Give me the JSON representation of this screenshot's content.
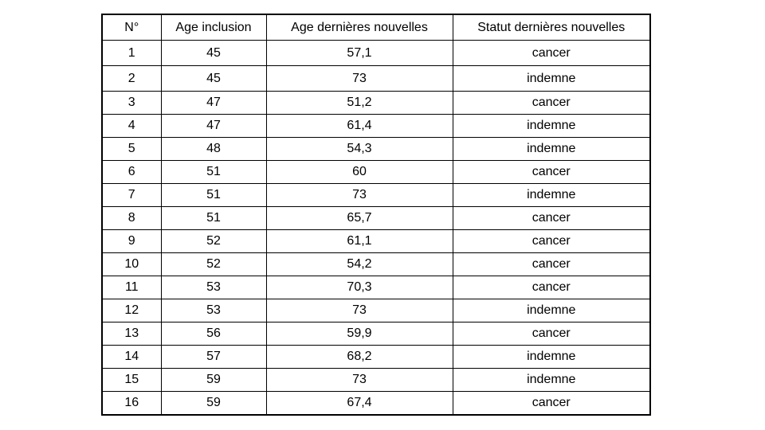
{
  "table": {
    "headers": [
      "N°",
      "Age inclusion",
      "Age dernières nouvelles",
      "Statut dernières nouvelles"
    ],
    "rows": [
      [
        "1",
        "45",
        "57,1",
        "cancer"
      ],
      [
        "2",
        "45",
        "73",
        "indemne"
      ],
      [
        "3",
        "47",
        "51,2",
        "cancer"
      ],
      [
        "4",
        "47",
        "61,4",
        "indemne"
      ],
      [
        "5",
        "48",
        "54,3",
        "indemne"
      ],
      [
        "6",
        "51",
        "60",
        "cancer"
      ],
      [
        "7",
        "51",
        "73",
        "indemne"
      ],
      [
        "8",
        "51",
        "65,7",
        "cancer"
      ],
      [
        "9",
        "52",
        "61,1",
        "cancer"
      ],
      [
        "10",
        "52",
        "54,2",
        "cancer"
      ],
      [
        "11",
        "53",
        "70,3",
        "cancer"
      ],
      [
        "12",
        "53",
        "73",
        "indemne"
      ],
      [
        "13",
        "56",
        "59,9",
        "cancer"
      ],
      [
        "14",
        "57",
        "68,2",
        "indemne"
      ],
      [
        "15",
        "59",
        "73",
        "indemne"
      ],
      [
        "16",
        "59",
        "67,4",
        "cancer"
      ]
    ]
  }
}
